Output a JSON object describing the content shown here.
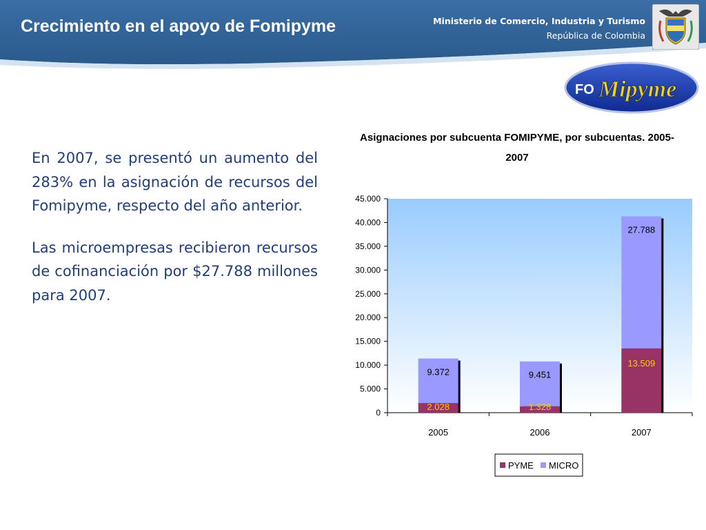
{
  "slide": {
    "title": "Crecimiento en el apoyo de Fomipyme",
    "ministry_line1": "Ministerio de Comercio, Industria y Turismo",
    "ministry_line2": "República de Colombia",
    "logo_text": "FOMipyme",
    "paragraphs": [
      "En 2007, se presentó un aumento del 283% en la asignación de recursos del Fomipyme, respecto del año anterior.",
      "Las microempresas recibieron recursos de cofinanciación por $27.788 millones para 2007."
    ]
  },
  "colors": {
    "header_blue": "#2e5f94",
    "text_blue": "#1f3e7a",
    "pyme": "#993366",
    "micro": "#9999ff",
    "pyme_label": "#ffcc00",
    "plot_top": "#99ccff"
  },
  "chart_data": {
    "type": "bar",
    "stacked": true,
    "title": "Asignaciones por subcuenta FOMIPYME, por subcuentas. 2005-2007",
    "categories": [
      "2005",
      "2006",
      "2007"
    ],
    "series": [
      {
        "name": "PYME",
        "values": [
          2028,
          1328,
          13509
        ],
        "labels": [
          "2.028",
          "1.328",
          "13.509"
        ]
      },
      {
        "name": "MICRO",
        "values": [
          9372,
          9451,
          27788
        ],
        "labels": [
          "9.372",
          "9.451",
          "27.788"
        ]
      }
    ],
    "ylim": [
      0,
      45000
    ],
    "yticks": [
      0,
      5000,
      10000,
      15000,
      20000,
      25000,
      30000,
      35000,
      40000,
      45000
    ],
    "ytick_labels": [
      "0",
      "5.000",
      "10.000",
      "15.000",
      "20.000",
      "25.000",
      "30.000",
      "35.000",
      "40.000",
      "45.000"
    ],
    "legend_position": "bottom",
    "grid": false
  }
}
